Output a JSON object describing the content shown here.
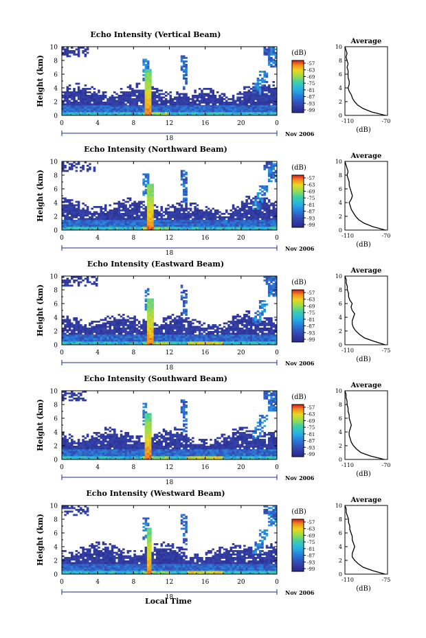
{
  "figure": {
    "xlabel": "Local Time",
    "date_label": "Nov 2006",
    "day_label": "18",
    "colorbar_unit": "(dB)",
    "colorbar_ticks": [
      "-57",
      "-63",
      "-69",
      "-75",
      "-81",
      "-87",
      "-93",
      "-99"
    ],
    "x_ticks": [
      "0",
      "4",
      "8",
      "12",
      "16",
      "20",
      "0"
    ],
    "y_ticks": [
      "0",
      "2",
      "4",
      "6",
      "8",
      "10"
    ],
    "ylabel": "Height (km)",
    "avg_title": "Average",
    "avg_xlabel": "(dB)",
    "avg_y_ticks": [
      "0",
      "2",
      "4",
      "6",
      "8",
      "10"
    ],
    "colors": {
      "low": "#2b2f8f",
      "mid": "#2aa7e0",
      "high": "#e8d21a",
      "peak": "#e03020"
    }
  },
  "chart_data": [
    {
      "type": "heatmap",
      "title": "Echo Intensity (Vertical Beam)",
      "xlabel": "Local Time",
      "ylabel": "Height (km)",
      "xlim": [
        0,
        24
      ],
      "ylim": [
        0,
        10
      ],
      "value_range_db": [
        -99,
        -57
      ],
      "avg_profile": {
        "xlim_labels": [
          "-110",
          "-70"
        ],
        "xlim": [
          -110,
          -70
        ],
        "heights": [
          0,
          0.5,
          1,
          1.5,
          2,
          2.5,
          3,
          3.5,
          4,
          4.5,
          5,
          5.5,
          6,
          6.5,
          7,
          7.5,
          8,
          8.5,
          9,
          9.5,
          10
        ],
        "values": [
          -72,
          -85,
          -93,
          -98,
          -101,
          -103,
          -104,
          -106,
          -107,
          -106,
          -106,
          -107,
          -107,
          -107,
          -108,
          -107,
          -108,
          -109,
          -108,
          -109,
          -110
        ]
      }
    },
    {
      "type": "heatmap",
      "title": "Echo Intensity (Northward Beam)",
      "xlabel": "Local Time",
      "ylabel": "Height (km)",
      "xlim": [
        0,
        24
      ],
      "ylim": [
        0,
        10
      ],
      "value_range_db": [
        -99,
        -57
      ],
      "avg_profile": {
        "xlim_labels": [
          "-110",
          "-70"
        ],
        "xlim": [
          -110,
          -70
        ],
        "heights": [
          0,
          0.5,
          1,
          1.5,
          2,
          2.5,
          3,
          3.5,
          4,
          4.5,
          5,
          5.5,
          6,
          6.5,
          7,
          7.5,
          8,
          8.5,
          9,
          9.5,
          10
        ],
        "values": [
          -72,
          -84,
          -92,
          -97,
          -100,
          -102,
          -104,
          -105,
          -106,
          -104,
          -103,
          -104,
          -105,
          -106,
          -106,
          -107,
          -108,
          -107,
          -108,
          -109,
          -110
        ]
      }
    },
    {
      "type": "heatmap",
      "title": "Echo Intensity (Eastward Beam)",
      "xlabel": "Local Time",
      "ylabel": "Height (km)",
      "xlim": [
        0,
        24
      ],
      "ylim": [
        0,
        10
      ],
      "value_range_db": [
        -99,
        -57
      ],
      "avg_profile": {
        "xlim_labels": [
          "-110",
          "-75"
        ],
        "xlim": [
          -110,
          -75
        ],
        "heights": [
          0,
          0.5,
          1,
          1.5,
          2,
          2.5,
          3,
          3.5,
          4,
          4.5,
          5,
          5.5,
          6,
          6.5,
          7,
          7.5,
          8,
          8.5,
          9,
          9.5,
          10
        ],
        "values": [
          -77,
          -86,
          -94,
          -98,
          -101,
          -103,
          -104,
          -104,
          -103,
          -102,
          -104,
          -105,
          -104,
          -106,
          -107,
          -107,
          -108,
          -108,
          -109,
          -109,
          -110
        ]
      }
    },
    {
      "type": "heatmap",
      "title": "Echo Intensity (Southward Beam)",
      "xlabel": "Local Time",
      "ylabel": "Height (km)",
      "xlim": [
        0,
        24
      ],
      "ylim": [
        0,
        10
      ],
      "value_range_db": [
        -99,
        -57
      ],
      "avg_profile": {
        "xlim_labels": [
          "-110",
          "-70"
        ],
        "xlim": [
          -110,
          -70
        ],
        "heights": [
          0,
          0.5,
          1,
          1.5,
          2,
          2.5,
          3,
          3.5,
          4,
          4.5,
          5,
          5.5,
          6,
          6.5,
          7,
          7.5,
          8,
          8.5,
          9,
          9.5,
          10
        ],
        "values": [
          -73,
          -86,
          -95,
          -99,
          -102,
          -104,
          -105,
          -106,
          -106,
          -105,
          -104,
          -105,
          -106,
          -106,
          -107,
          -107,
          -108,
          -108,
          -109,
          -109,
          -110
        ]
      }
    },
    {
      "type": "heatmap",
      "title": "Echo Intensity (Westward Beam)",
      "xlabel": "Local Time",
      "ylabel": "Height (km)",
      "xlim": [
        0,
        24
      ],
      "ylim": [
        0,
        10
      ],
      "value_range_db": [
        -99,
        -57
      ],
      "avg_profile": {
        "xlim_labels": [
          "-110",
          "-75"
        ],
        "xlim": [
          -110,
          -75
        ],
        "heights": [
          0,
          0.5,
          1,
          1.5,
          2,
          2.5,
          3,
          3.5,
          4,
          4.5,
          5,
          5.5,
          6,
          6.5,
          7,
          7.5,
          8,
          8.5,
          9,
          9.5,
          10
        ],
        "values": [
          -77,
          -87,
          -95,
          -99,
          -102,
          -104,
          -104,
          -103,
          -102,
          -103,
          -104,
          -104,
          -105,
          -106,
          -106,
          -107,
          -107,
          -108,
          -109,
          -109,
          -110
        ]
      }
    }
  ]
}
